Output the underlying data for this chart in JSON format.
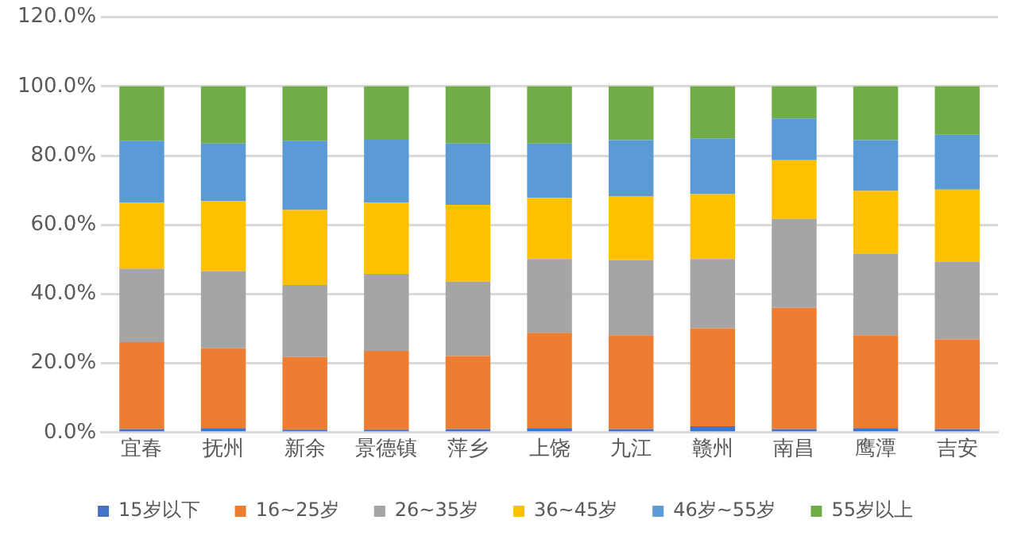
{
  "chart_data": {
    "type": "bar",
    "stacked": true,
    "categories": [
      "宜春",
      "抚州",
      "新余",
      "景德镇",
      "萍乡",
      "上饶",
      "九江",
      "赣州",
      "南昌",
      "鹰潭",
      "吉安"
    ],
    "series": [
      {
        "name": "15岁以下",
        "color": "#4472c4",
        "values": [
          1.0,
          1.3,
          0.8,
          0.8,
          1.0,
          1.3,
          1.0,
          1.8,
          1.0,
          1.3,
          1.0
        ]
      },
      {
        "name": "16~25岁",
        "color": "#ed7d31",
        "values": [
          25.1,
          23.0,
          21.0,
          22.8,
          21.1,
          27.5,
          27.1,
          28.3,
          35.0,
          26.8,
          25.9
        ]
      },
      {
        "name": "26~35岁",
        "color": "#a5a5a5",
        "values": [
          21.2,
          22.3,
          20.8,
          22.2,
          21.5,
          21.3,
          21.7,
          20.0,
          25.7,
          23.6,
          22.5
        ]
      },
      {
        "name": "36~45岁",
        "color": "#ffc000",
        "values": [
          19.1,
          20.2,
          21.7,
          20.6,
          22.2,
          17.7,
          18.5,
          18.8,
          17.0,
          18.1,
          20.8
        ]
      },
      {
        "name": "46岁~55岁",
        "color": "#5b9bd5",
        "values": [
          17.9,
          16.7,
          20.0,
          18.2,
          17.7,
          15.7,
          16.2,
          16.1,
          12.0,
          14.7,
          15.8
        ]
      },
      {
        "name": "55岁以上",
        "color": "#70ad47",
        "values": [
          15.7,
          16.5,
          15.7,
          15.4,
          16.5,
          16.5,
          15.5,
          15.0,
          9.3,
          15.5,
          14.0
        ]
      }
    ],
    "ylim": [
      0,
      120
    ],
    "yticks": [
      {
        "value": 0,
        "label": "0.0%"
      },
      {
        "value": 20,
        "label": "20.0%"
      },
      {
        "value": 40,
        "label": "40.0%"
      },
      {
        "value": 60,
        "label": "60.0%"
      },
      {
        "value": 80,
        "label": "80.0%"
      },
      {
        "value": 100,
        "label": "100.0%"
      },
      {
        "value": 120,
        "label": "120.0%"
      }
    ],
    "grid": "y",
    "legend": "bottom"
  }
}
